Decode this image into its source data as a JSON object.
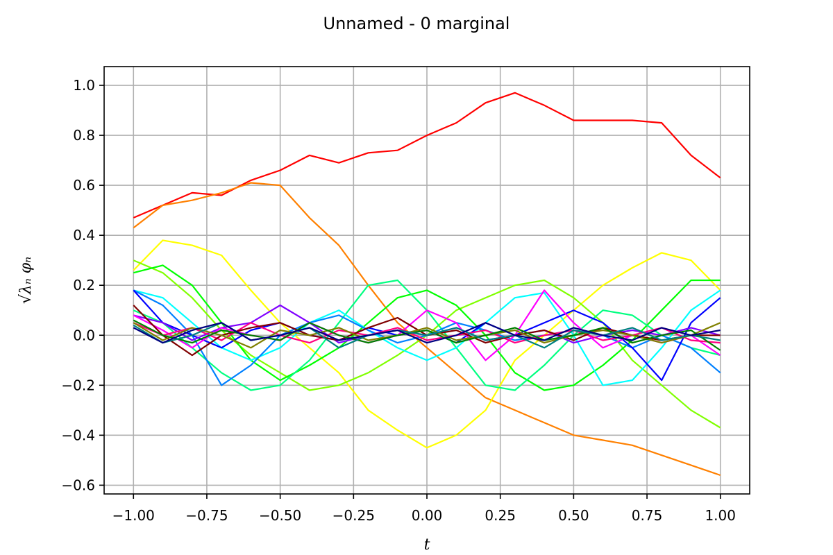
{
  "chart_data": {
    "type": "line",
    "title": "Unnamed - 0 marginal",
    "xlabel": "t",
    "ylabel": "√λₙ φₙ",
    "xlim": [
      -1.1,
      1.1
    ],
    "ylim": [
      -0.635,
      1.075
    ],
    "grid": true,
    "legend": "none",
    "xticks": [
      -1.0,
      -0.75,
      -0.5,
      -0.25,
      0.0,
      0.25,
      0.5,
      0.75,
      1.0
    ],
    "xtick_labels": [
      "−1.00",
      "−0.75",
      "−0.50",
      "−0.25",
      "0.00",
      "0.25",
      "0.50",
      "0.75",
      "1.00"
    ],
    "yticks": [
      -0.6,
      -0.4,
      -0.2,
      0.0,
      0.2,
      0.4,
      0.6,
      0.8,
      1.0
    ],
    "ytick_labels": [
      "−0.6",
      "−0.4",
      "−0.2",
      "0.0",
      "0.2",
      "0.4",
      "0.6",
      "0.8",
      "1.0"
    ],
    "x": [
      -1.0,
      -0.9,
      -0.8,
      -0.7,
      -0.6,
      -0.5,
      -0.4,
      -0.3,
      -0.2,
      -0.1,
      0.0,
      0.1,
      0.2,
      0.3,
      0.4,
      0.5,
      0.6,
      0.7,
      0.8,
      0.9,
      1.0
    ],
    "series": [
      {
        "color": "#ff0000",
        "values": [
          0.47,
          0.52,
          0.57,
          0.56,
          0.62,
          0.66,
          0.72,
          0.69,
          0.73,
          0.74,
          0.8,
          0.85,
          0.93,
          0.97,
          0.92,
          0.86,
          0.86,
          0.86,
          0.85,
          0.72,
          0.63
        ]
      },
      {
        "color": "#ff8000",
        "values": [
          0.43,
          0.52,
          0.54,
          0.57,
          0.61,
          0.6,
          0.47,
          0.36,
          0.2,
          0.05,
          -0.05,
          -0.15,
          -0.25,
          -0.3,
          -0.35,
          -0.4,
          -0.42,
          -0.44,
          -0.48,
          -0.52,
          -0.56
        ]
      },
      {
        "color": "#ffff00",
        "values": [
          0.26,
          0.38,
          0.36,
          0.32,
          0.18,
          0.05,
          -0.05,
          -0.15,
          -0.3,
          -0.38,
          -0.45,
          -0.4,
          -0.3,
          -0.1,
          0.0,
          0.1,
          0.2,
          0.27,
          0.33,
          0.3,
          0.18
        ]
      },
      {
        "color": "#80ff00",
        "values": [
          0.3,
          0.25,
          0.15,
          0.02,
          -0.08,
          -0.15,
          -0.22,
          -0.2,
          -0.15,
          -0.08,
          0.0,
          0.1,
          0.15,
          0.2,
          0.22,
          0.15,
          0.05,
          -0.1,
          -0.2,
          -0.3,
          -0.37
        ]
      },
      {
        "color": "#00ff00",
        "values": [
          0.25,
          0.28,
          0.2,
          0.05,
          -0.1,
          -0.18,
          -0.12,
          -0.05,
          0.05,
          0.15,
          0.18,
          0.12,
          0.0,
          -0.15,
          -0.22,
          -0.2,
          -0.12,
          -0.02,
          0.1,
          0.22,
          0.22
        ]
      },
      {
        "color": "#00ff80",
        "values": [
          0.1,
          0.05,
          -0.05,
          -0.15,
          -0.22,
          -0.2,
          -0.1,
          0.05,
          0.2,
          0.22,
          0.1,
          -0.05,
          -0.2,
          -0.22,
          -0.12,
          0.0,
          0.1,
          0.08,
          0.0,
          -0.05,
          -0.08
        ]
      },
      {
        "color": "#00ffff",
        "values": [
          0.18,
          0.15,
          0.05,
          -0.05,
          -0.1,
          -0.05,
          0.05,
          0.1,
          0.02,
          -0.05,
          -0.1,
          -0.05,
          0.05,
          0.15,
          0.17,
          0.0,
          -0.2,
          -0.18,
          -0.05,
          0.1,
          0.18
        ]
      },
      {
        "color": "#0080ff",
        "values": [
          0.18,
          0.12,
          0.0,
          -0.2,
          -0.12,
          0.0,
          0.05,
          0.08,
          0.02,
          -0.03,
          0.0,
          0.05,
          0.02,
          -0.02,
          0.0,
          0.02,
          0.0,
          -0.05,
          0.0,
          -0.05,
          -0.15
        ]
      },
      {
        "color": "#0000ff",
        "values": [
          0.18,
          0.05,
          0.0,
          -0.05,
          0.02,
          0.05,
          0.0,
          -0.02,
          0.03,
          0.0,
          0.02,
          -0.03,
          0.05,
          0.0,
          0.05,
          0.1,
          0.05,
          -0.05,
          -0.18,
          0.05,
          0.15
        ]
      },
      {
        "color": "#8000ff",
        "values": [
          0.08,
          0.05,
          -0.02,
          0.03,
          0.05,
          0.12,
          0.05,
          -0.03,
          0.0,
          0.02,
          0.0,
          0.03,
          -0.02,
          0.0,
          0.02,
          -0.03,
          0.0,
          0.02,
          0.0,
          0.03,
          0.0
        ]
      },
      {
        "color": "#ff00ff",
        "values": [
          0.08,
          0.02,
          -0.05,
          0.03,
          0.0,
          -0.02,
          0.05,
          0.0,
          -0.03,
          0.0,
          0.1,
          0.05,
          -0.1,
          0.0,
          0.18,
          0.05,
          -0.05,
          0.0,
          -0.03,
          0.0,
          -0.08
        ]
      },
      {
        "color": "#ff0080",
        "values": [
          0.05,
          0.0,
          0.03,
          -0.02,
          0.05,
          0.0,
          -0.03,
          0.02,
          0.0,
          0.03,
          -0.02,
          0.0,
          0.02,
          -0.03,
          0.0,
          0.02,
          -0.02,
          0.0,
          0.03,
          -0.02,
          -0.03
        ]
      },
      {
        "color": "#800000",
        "values": [
          0.12,
          0.0,
          -0.08,
          0.0,
          0.03,
          0.05,
          0.0,
          -0.02,
          0.03,
          0.07,
          0.0,
          0.02,
          -0.03,
          0.0,
          0.02,
          -0.02,
          0.03,
          0.0,
          -0.02,
          0.0,
          0.0
        ]
      },
      {
        "color": "#808000",
        "values": [
          0.05,
          -0.02,
          0.03,
          0.0,
          -0.05,
          0.02,
          0.0,
          0.03,
          -0.02,
          0.0,
          0.03,
          -0.02,
          0.0,
          0.02,
          -0.03,
          0.0,
          0.02,
          0.0,
          -0.03,
          0.0,
          0.05
        ]
      },
      {
        "color": "#008000",
        "values": [
          0.06,
          0.0,
          -0.03,
          0.02,
          0.0,
          -0.02,
          0.05,
          0.0,
          -0.03,
          0.0,
          0.02,
          -0.03,
          0.0,
          0.03,
          -0.02,
          0.0,
          0.03,
          -0.03,
          0.0,
          0.02,
          -0.06
        ]
      },
      {
        "color": "#008080",
        "values": [
          0.04,
          -0.03,
          0.0,
          0.05,
          -0.02,
          0.0,
          0.03,
          -0.05,
          0.0,
          0.02,
          0.0,
          0.03,
          -0.02,
          0.0,
          -0.05,
          0.02,
          0.0,
          0.03,
          -0.02,
          0.0,
          -0.02
        ]
      },
      {
        "color": "#000080",
        "values": [
          0.03,
          -0.03,
          0.02,
          0.05,
          -0.02,
          0.0,
          0.03,
          -0.02,
          0.0,
          0.02,
          -0.03,
          0.0,
          0.05,
          0.0,
          -0.02,
          0.03,
          0.0,
          -0.02,
          0.03,
          0.0,
          0.02
        ]
      }
    ]
  }
}
